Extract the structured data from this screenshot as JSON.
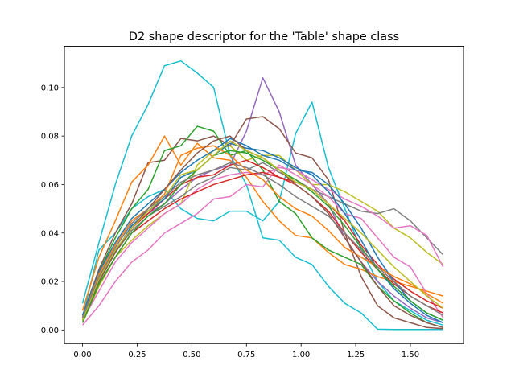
{
  "chart_data": {
    "type": "line",
    "title": "D2 shape descriptor for the 'Table' shape class",
    "xlabel": "",
    "ylabel": "",
    "xlim": [
      -0.083,
      1.743
    ],
    "ylim": [
      -0.0056,
      0.117
    ],
    "x_ticks": [
      0.0,
      0.25,
      0.5,
      0.75,
      1.0,
      1.25,
      1.5
    ],
    "x_tick_labels": [
      "0.00",
      "0.25",
      "0.50",
      "0.75",
      "1.00",
      "1.25",
      "1.50"
    ],
    "y_ticks": [
      0.0,
      0.02,
      0.04,
      0.06,
      0.08,
      0.1
    ],
    "y_tick_labels": [
      "0.00",
      "0.02",
      "0.04",
      "0.06",
      "0.08",
      "0.10"
    ],
    "grid": false,
    "legend": "none",
    "x": [
      0.0,
      0.075,
      0.15,
      0.225,
      0.3,
      0.375,
      0.45,
      0.525,
      0.6,
      0.675,
      0.75,
      0.825,
      0.9,
      0.975,
      1.05,
      1.125,
      1.2,
      1.275,
      1.35,
      1.425,
      1.5,
      1.575,
      1.65
    ],
    "series": [
      {
        "color": "#17becf",
        "values": [
          0.011,
          0.036,
          0.06,
          0.08,
          0.093,
          0.109,
          0.111,
          0.106,
          0.1,
          0.072,
          0.06,
          0.038,
          0.037,
          0.03,
          0.027,
          0.018,
          0.011,
          0.007,
          0.0003,
          0.0002,
          0.0002,
          0.0002,
          0.0002
        ]
      },
      {
        "color": "#17becf",
        "values": [
          0.005,
          0.033,
          0.04,
          0.05,
          0.055,
          0.058,
          0.05,
          0.046,
          0.045,
          0.049,
          0.049,
          0.045,
          0.053,
          0.081,
          0.094,
          0.067,
          0.05,
          0.033,
          0.02,
          0.012,
          0.008,
          0.004,
          0.002
        ]
      },
      {
        "color": "#9467bd",
        "values": [
          0.004,
          0.02,
          0.032,
          0.043,
          0.048,
          0.052,
          0.058,
          0.063,
          0.066,
          0.068,
          0.082,
          0.104,
          0.09,
          0.068,
          0.06,
          0.052,
          0.038,
          0.028,
          0.02,
          0.014,
          0.009,
          0.005,
          0.003
        ]
      },
      {
        "color": "#8c564b",
        "values": [
          0.006,
          0.025,
          0.04,
          0.052,
          0.069,
          0.07,
          0.079,
          0.078,
          0.08,
          0.076,
          0.087,
          0.088,
          0.083,
          0.073,
          0.071,
          0.062,
          0.04,
          0.022,
          0.01,
          0.005,
          0.003,
          0.001,
          0.0005
        ]
      },
      {
        "color": "#ff7f0e",
        "values": [
          0.008,
          0.03,
          0.045,
          0.061,
          0.068,
          0.08,
          0.068,
          0.077,
          0.071,
          0.07,
          0.063,
          0.053,
          0.045,
          0.039,
          0.038,
          0.032,
          0.027,
          0.025,
          0.022,
          0.02,
          0.018,
          0.016,
          0.014
        ]
      },
      {
        "color": "#2ca02c",
        "values": [
          0.005,
          0.024,
          0.038,
          0.05,
          0.058,
          0.074,
          0.076,
          0.084,
          0.082,
          0.072,
          0.074,
          0.066,
          0.053,
          0.048,
          0.038,
          0.033,
          0.03,
          0.027,
          0.018,
          0.012,
          0.007,
          0.003,
          0.001
        ]
      },
      {
        "color": "#bcbd22",
        "values": [
          0.003,
          0.018,
          0.03,
          0.037,
          0.043,
          0.048,
          0.052,
          0.068,
          0.074,
          0.076,
          0.07,
          0.072,
          0.072,
          0.066,
          0.06,
          0.06,
          0.057,
          0.053,
          0.049,
          0.042,
          0.038,
          0.032,
          0.027
        ]
      },
      {
        "color": "#7f7f7f",
        "values": [
          0.004,
          0.02,
          0.032,
          0.041,
          0.047,
          0.051,
          0.055,
          0.06,
          0.063,
          0.067,
          0.066,
          0.069,
          0.065,
          0.062,
          0.058,
          0.055,
          0.052,
          0.049,
          0.048,
          0.05,
          0.045,
          0.038,
          0.031
        ]
      },
      {
        "color": "#e377c2",
        "values": [
          0.002,
          0.01,
          0.02,
          0.028,
          0.033,
          0.04,
          0.044,
          0.048,
          0.054,
          0.055,
          0.06,
          0.059,
          0.068,
          0.064,
          0.06,
          0.055,
          0.048,
          0.046,
          0.038,
          0.03,
          0.026,
          0.015,
          0.005
        ]
      },
      {
        "color": "#e377c2",
        "values": [
          0.004,
          0.016,
          0.028,
          0.036,
          0.042,
          0.048,
          0.052,
          0.058,
          0.062,
          0.064,
          0.065,
          0.064,
          0.067,
          0.066,
          0.062,
          0.058,
          0.054,
          0.051,
          0.047,
          0.042,
          0.043,
          0.039,
          0.026
        ]
      },
      {
        "color": "#d62728",
        "values": [
          0.003,
          0.019,
          0.03,
          0.04,
          0.045,
          0.05,
          0.054,
          0.057,
          0.06,
          0.062,
          0.064,
          0.065,
          0.063,
          0.061,
          0.058,
          0.052,
          0.045,
          0.035,
          0.027,
          0.021,
          0.016,
          0.012,
          0.009
        ]
      },
      {
        "color": "#d62728",
        "values": [
          0.005,
          0.022,
          0.033,
          0.042,
          0.048,
          0.054,
          0.06,
          0.063,
          0.064,
          0.068,
          0.07,
          0.067,
          0.063,
          0.06,
          0.055,
          0.049,
          0.04,
          0.032,
          0.025,
          0.019,
          0.014,
          0.01,
          0.007
        ]
      },
      {
        "color": "#1f77b4",
        "values": [
          0.004,
          0.021,
          0.032,
          0.043,
          0.049,
          0.054,
          0.063,
          0.066,
          0.072,
          0.077,
          0.075,
          0.074,
          0.071,
          0.067,
          0.064,
          0.057,
          0.048,
          0.037,
          0.025,
          0.017,
          0.011,
          0.006,
          0.003
        ]
      },
      {
        "color": "#1f77b4",
        "values": [
          0.006,
          0.024,
          0.036,
          0.046,
          0.052,
          0.058,
          0.065,
          0.07,
          0.074,
          0.079,
          0.076,
          0.072,
          0.07,
          0.066,
          0.065,
          0.06,
          0.052,
          0.042,
          0.03,
          0.02,
          0.012,
          0.007,
          0.004
        ]
      },
      {
        "color": "#ff7f0e",
        "values": [
          0.005,
          0.023,
          0.035,
          0.045,
          0.05,
          0.056,
          0.072,
          0.075,
          0.076,
          0.072,
          0.066,
          0.062,
          0.055,
          0.05,
          0.047,
          0.041,
          0.034,
          0.03,
          0.026,
          0.022,
          0.019,
          0.015,
          0.011
        ]
      },
      {
        "color": "#8c564b",
        "values": [
          0.004,
          0.02,
          0.032,
          0.042,
          0.05,
          0.058,
          0.066,
          0.073,
          0.078,
          0.08,
          0.074,
          0.071,
          0.066,
          0.06,
          0.055,
          0.048,
          0.038,
          0.028,
          0.018,
          0.01,
          0.006,
          0.003,
          0.001
        ]
      },
      {
        "color": "#2ca02c",
        "values": [
          0.003,
          0.019,
          0.03,
          0.04,
          0.047,
          0.052,
          0.06,
          0.066,
          0.072,
          0.074,
          0.073,
          0.07,
          0.066,
          0.062,
          0.057,
          0.051,
          0.043,
          0.034,
          0.025,
          0.018,
          0.012,
          0.007,
          0.004
        ]
      },
      {
        "color": "#bcbd22",
        "values": [
          0.004,
          0.021,
          0.033,
          0.042,
          0.049,
          0.055,
          0.064,
          0.066,
          0.072,
          0.078,
          0.074,
          0.071,
          0.066,
          0.061,
          0.058,
          0.052,
          0.046,
          0.04,
          0.033,
          0.026,
          0.02,
          0.014,
          0.009
        ]
      },
      {
        "color": "#7f7f7f",
        "values": [
          0.005,
          0.022,
          0.034,
          0.044,
          0.05,
          0.055,
          0.061,
          0.064,
          0.066,
          0.069,
          0.067,
          0.064,
          0.06,
          0.055,
          0.051,
          0.047,
          0.04,
          0.033,
          0.026,
          0.02,
          0.014,
          0.01,
          0.006
        ]
      }
    ]
  }
}
